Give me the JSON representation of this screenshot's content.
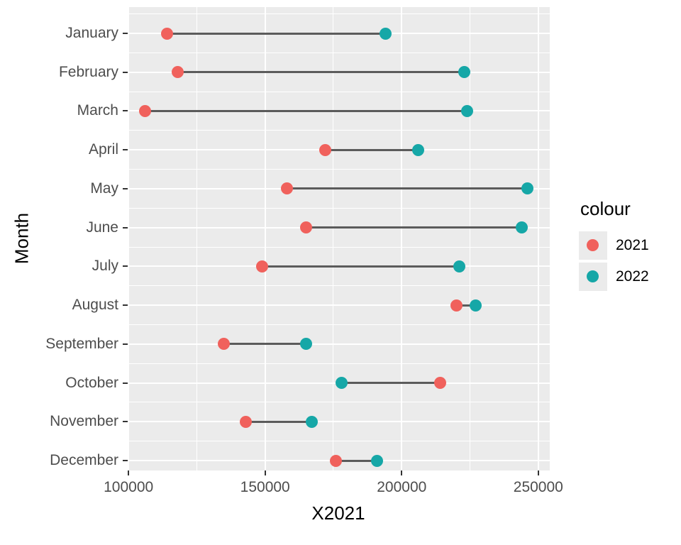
{
  "chart_data": {
    "type": "dumbbell",
    "title": "",
    "xlabel": "X2021",
    "ylabel": "Month",
    "legend_title": "colour",
    "legend_position": "right",
    "categories": [
      "January",
      "February",
      "March",
      "April",
      "May",
      "June",
      "July",
      "August",
      "September",
      "October",
      "November",
      "December"
    ],
    "series": [
      {
        "name": "2021",
        "color": "#F0615C",
        "values": [
          114000,
          118000,
          106000,
          172000,
          158000,
          165000,
          149000,
          220000,
          135000,
          214000,
          143000,
          176000
        ]
      },
      {
        "name": "2022",
        "color": "#16A7A7",
        "values": [
          194000,
          223000,
          224000,
          206000,
          246000,
          244000,
          221000,
          227000,
          165000,
          178000,
          167000,
          191000
        ]
      }
    ],
    "xlim": [
      99700,
      254200
    ],
    "x_ticks": [
      100000,
      150000,
      200000,
      250000
    ],
    "x_tick_labels": [
      "100000",
      "150000",
      "200000",
      "250000"
    ],
    "x_minor_ticks": [
      125000,
      175000,
      225000
    ],
    "grid": true,
    "panel_bg": "#EBEBEB",
    "grid_color": "#FFFFFF",
    "connector_color": "#5B5B5B",
    "axis_text_color": "#4D4D4D",
    "tick_mark_color": "#333333",
    "title_text_color": "#000000"
  }
}
